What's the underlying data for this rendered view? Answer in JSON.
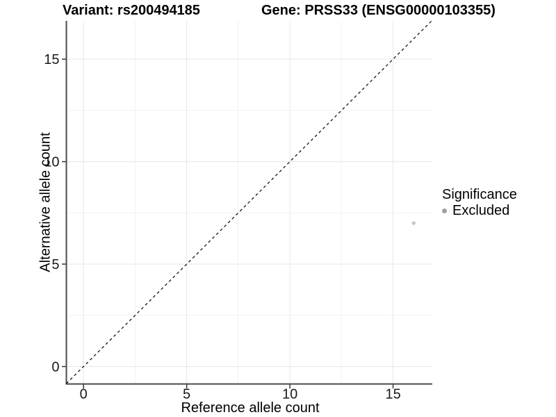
{
  "header": {
    "title_variant": "Variant: rs200494185",
    "title_gene": "Gene: PRSS33 (ENSG00000103355)"
  },
  "chart_data": {
    "type": "scatter",
    "title": "Variant: rs200494185 / Gene: PRSS33 (ENSG00000103355)",
    "xlabel": "Reference allele count",
    "ylabel": "Alternative allele count",
    "xlim": [
      -0.83,
      16.9
    ],
    "ylim": [
      -0.85,
      16.87
    ],
    "x_ticks": [
      0,
      5,
      10,
      15
    ],
    "y_ticks": [
      0,
      5,
      10,
      15
    ],
    "x_minor_ticks": [
      2.5,
      7.5,
      12.5
    ],
    "y_minor_ticks": [
      2.5,
      7.5,
      12.5
    ],
    "grid": {
      "major_color": "#e6e6e6",
      "minor_color": "#f2f2f2"
    },
    "axis_line_color": "#4a4a4a",
    "tick_mark_color": "#333333",
    "tick_text_color": "#1a1a1a",
    "identity_line": {
      "equation": "y = x",
      "style": "dashed",
      "color": "#000000"
    },
    "series": [
      {
        "name": "Excluded",
        "significance": "Excluded",
        "color": "#c6c6c6",
        "points": [
          [
            16,
            7
          ]
        ]
      }
    ],
    "legend": {
      "title": "Significance",
      "position": "right",
      "entries": [
        {
          "label": "Excluded",
          "marker_color": "#a0a0a0"
        }
      ]
    }
  }
}
